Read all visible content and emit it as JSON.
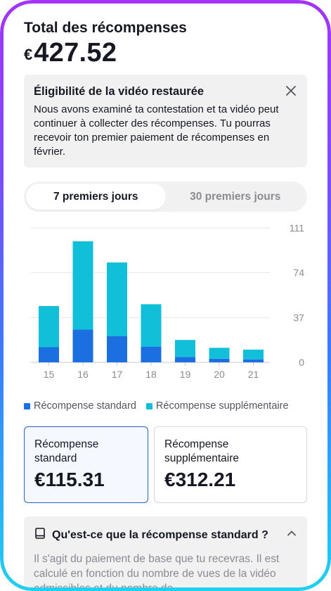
{
  "header": {
    "title": "Total des récompenses",
    "currency": "€",
    "amount": "427.52"
  },
  "notice": {
    "title": "Éligibilité de la vidéo restaurée",
    "body": "Nous avons examiné ta contestation et ta vidéo peut continuer à collecter des récompenses. Tu pourras recevoir ton premier paiement de récompenses en février."
  },
  "tabs": [
    {
      "label": "7 premiers jours",
      "active": true
    },
    {
      "label": "30 premiers jours",
      "active": false
    }
  ],
  "chart_data": {
    "type": "bar",
    "stacked": true,
    "categories": [
      "15",
      "16",
      "17",
      "18",
      "19",
      "20",
      "21"
    ],
    "series": [
      {
        "name": "Récompense standard",
        "color": "#1b6fe0",
        "values": [
          12.5,
          27,
          21.5,
          13,
          4.5,
          3,
          2.5
        ]
      },
      {
        "name": "Récompense supplémentaire",
        "color": "#12bfd9",
        "values": [
          34,
          73,
          61,
          35,
          14,
          9,
          8
        ]
      }
    ],
    "yticks": [
      "111",
      "74",
      "37",
      "0"
    ],
    "ylim": [
      0,
      111
    ],
    "grid": true,
    "legend": "bottom"
  },
  "legend": {
    "standard": "Récompense standard",
    "extra": "Récompense supplémentaire",
    "standard_color": "#1b6fe0",
    "extra_color": "#12bfd9"
  },
  "cards": {
    "standard_label": "Récompense standard",
    "standard_value": "€115.31",
    "extra_label": "Récompense supplémentaire",
    "extra_value": "€312.21"
  },
  "faq": {
    "question": "Qu'est-ce que la récompense standard ?",
    "answer": "Il s'agit du paiement de base que tu recevras. Il est calculé en fonction du nombre de vues de la vidéo admissibles et du nombre de"
  },
  "icons": {
    "close": "close-icon",
    "book": "book-icon",
    "chevron": "chevron-up-icon"
  }
}
